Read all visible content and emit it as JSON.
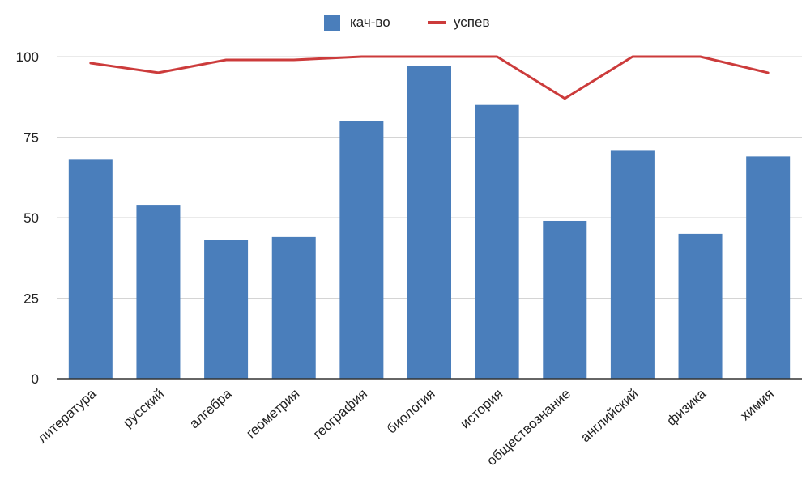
{
  "chart_data": {
    "type": "bar",
    "title": "",
    "xlabel": "",
    "ylabel": "",
    "categories": [
      "литература",
      "русский",
      "алгебра",
      "геометрия",
      "география",
      "биология",
      "история",
      "обществознание",
      "английский",
      "физика",
      "химия"
    ],
    "series": [
      {
        "name": "кач-во",
        "type": "bar",
        "color": "#4a7ebb",
        "values": [
          68,
          54,
          43,
          44,
          80,
          97,
          85,
          49,
          71,
          45,
          69
        ]
      },
      {
        "name": "успев",
        "type": "line",
        "color": "#cc3b3b",
        "values": [
          98,
          95,
          99,
          99,
          100,
          100,
          100,
          87,
          100,
          100,
          95
        ]
      }
    ],
    "ylim": [
      0,
      100
    ],
    "yticks": [
      0,
      25,
      50,
      75,
      100
    ],
    "grid": true,
    "legend": "top-center"
  }
}
